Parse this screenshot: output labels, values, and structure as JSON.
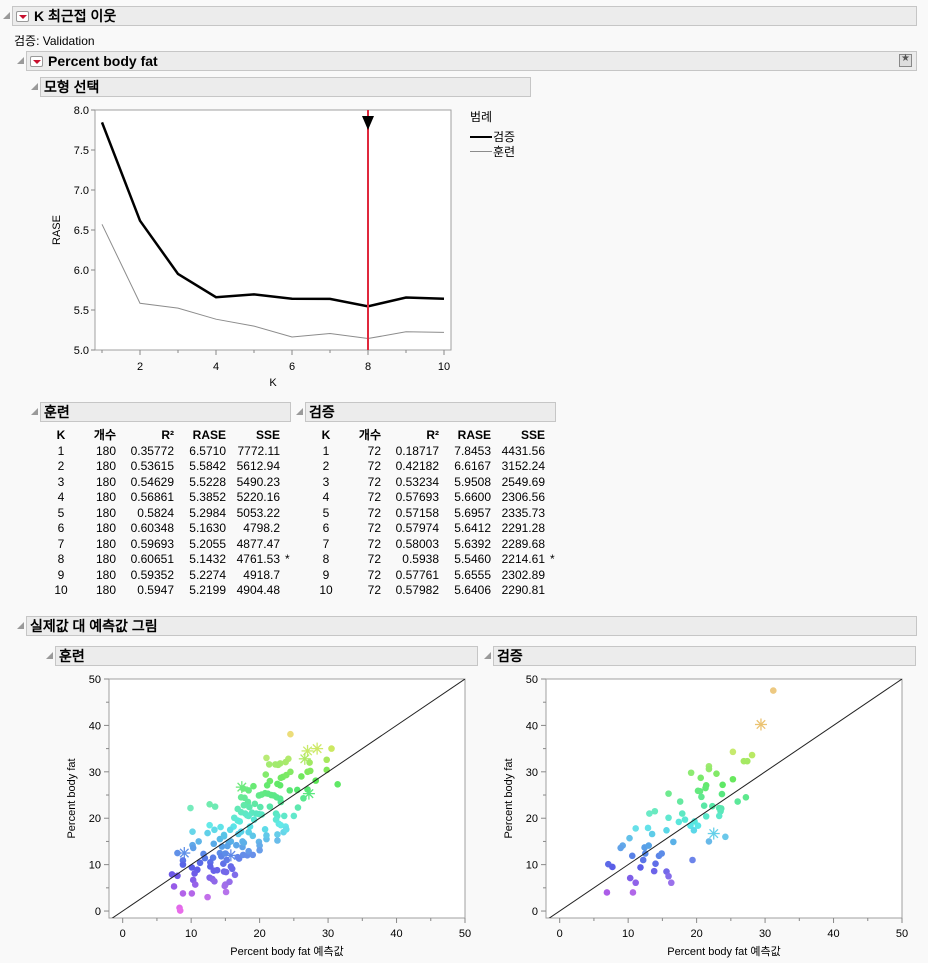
{
  "report": {
    "title": "K 최근접 이웃",
    "validation_label": "검증: Validation",
    "response": {
      "title": "Percent body fat",
      "model_selection": {
        "title": "모형 선택",
        "legend_title": "범례",
        "legend_items": [
          "검증",
          "훈련"
        ]
      },
      "training_table": {
        "title": "훈련",
        "columns": [
          "K",
          "개수",
          "R²",
          "RASE",
          "SSE",
          ""
        ],
        "rows": [
          [
            "1",
            "180",
            "0.35772",
            "6.5710",
            "7772.11",
            ""
          ],
          [
            "2",
            "180",
            "0.53615",
            "5.5842",
            "5612.94",
            ""
          ],
          [
            "3",
            "180",
            "0.54629",
            "5.5228",
            "5490.23",
            ""
          ],
          [
            "4",
            "180",
            "0.56861",
            "5.3852",
            "5220.16",
            ""
          ],
          [
            "5",
            "180",
            "0.5824",
            "5.2984",
            "5053.22",
            ""
          ],
          [
            "6",
            "180",
            "0.60348",
            "5.1630",
            "4798.2",
            ""
          ],
          [
            "7",
            "180",
            "0.59693",
            "5.2055",
            "4877.47",
            ""
          ],
          [
            "8",
            "180",
            "0.60651",
            "5.1432",
            "4761.53",
            "*"
          ],
          [
            "9",
            "180",
            "0.59352",
            "5.2274",
            "4918.7",
            ""
          ],
          [
            "10",
            "180",
            "0.5947",
            "5.2199",
            "4904.48",
            ""
          ]
        ]
      },
      "validation_table": {
        "title": "검증",
        "columns": [
          "K",
          "개수",
          "R²",
          "RASE",
          "SSE",
          ""
        ],
        "rows": [
          [
            "1",
            "72",
            "0.18717",
            "7.8453",
            "4431.56",
            ""
          ],
          [
            "2",
            "72",
            "0.42182",
            "6.6167",
            "3152.24",
            ""
          ],
          [
            "3",
            "72",
            "0.53234",
            "5.9508",
            "2549.69",
            ""
          ],
          [
            "4",
            "72",
            "0.57693",
            "5.6600",
            "2306.56",
            ""
          ],
          [
            "5",
            "72",
            "0.57158",
            "5.6957",
            "2335.73",
            ""
          ],
          [
            "6",
            "72",
            "0.57974",
            "5.6412",
            "2291.28",
            ""
          ],
          [
            "7",
            "72",
            "0.58003",
            "5.6392",
            "2289.68",
            ""
          ],
          [
            "8",
            "72",
            "0.5938",
            "5.5460",
            "2214.61",
            "*"
          ],
          [
            "9",
            "72",
            "0.57761",
            "5.6555",
            "2302.89",
            ""
          ],
          [
            "10",
            "72",
            "0.57982",
            "5.6406",
            "2290.81",
            ""
          ]
        ]
      },
      "actual_vs_predicted": {
        "title": "실제값 대 예측값 그림",
        "training_title": "훈련",
        "validation_title": "검증"
      }
    }
  },
  "colors": {
    "validation_line": "#000000",
    "training_line": "#8c8c8c",
    "selected_k_line": "#e0283c",
    "band_bg": "#ececec"
  },
  "chart_data": [
    {
      "type": "line",
      "title": "모형 선택",
      "xlabel": "K",
      "ylabel": "RASE",
      "x": [
        1,
        2,
        3,
        4,
        5,
        6,
        7,
        8,
        9,
        10
      ],
      "xticks": [
        2,
        4,
        6,
        8,
        10
      ],
      "yticks": [
        5.0,
        5.5,
        6.0,
        6.5,
        7.0,
        7.5,
        8.0
      ],
      "ylim": [
        5.0,
        8.0
      ],
      "xlim": [
        0.8,
        10.2
      ],
      "selected_k": 8,
      "legend": {
        "title": "범례",
        "position": "right"
      },
      "series": [
        {
          "name": "검증",
          "values": [
            7.8453,
            6.6167,
            5.9508,
            5.66,
            5.6957,
            5.6412,
            5.6392,
            5.546,
            5.6555,
            5.6406
          ]
        },
        {
          "name": "훈련",
          "values": [
            6.571,
            5.5842,
            5.5228,
            5.3852,
            5.2984,
            5.163,
            5.2055,
            5.1432,
            5.2274,
            5.2199
          ]
        }
      ]
    },
    {
      "type": "scatter",
      "title": "훈련",
      "xlabel": "Percent body fat 예측값",
      "ylabel": "Percent body fat",
      "xlim": [
        -2,
        50
      ],
      "ylim": [
        -1.5,
        50
      ],
      "xticks": [
        0,
        10,
        20,
        30,
        40,
        50
      ],
      "yticks": [
        0,
        10,
        20,
        30,
        40,
        50
      ],
      "reference_line": "y=x",
      "points": [
        [
          24.5,
          38.1
        ],
        [
          30.5,
          35
        ],
        [
          28.4,
          35,
          "s"
        ],
        [
          27,
          34.5,
          "s"
        ],
        [
          21,
          33
        ],
        [
          24.2,
          32.8
        ],
        [
          26.6,
          32.8,
          "s"
        ],
        [
          27.3,
          32
        ],
        [
          29.8,
          32.6
        ],
        [
          22.3,
          31.6
        ],
        [
          21.4,
          31.6
        ],
        [
          23,
          31.8
        ],
        [
          22.7,
          31.5
        ],
        [
          23.8,
          32.1
        ],
        [
          20.9,
          29.4
        ],
        [
          23.4,
          28.9
        ],
        [
          23.1,
          28.7
        ],
        [
          24.5,
          30
        ],
        [
          23.9,
          29.3
        ],
        [
          26.1,
          29
        ],
        [
          27,
          30
        ],
        [
          27.4,
          30.2
        ],
        [
          29.8,
          30.4
        ],
        [
          21.5,
          28
        ],
        [
          22.6,
          27.4
        ],
        [
          23,
          27.1
        ],
        [
          21.1,
          27.1
        ],
        [
          18.4,
          26
        ],
        [
          19.1,
          26.9
        ],
        [
          17.4,
          26.7,
          "s"
        ],
        [
          17.6,
          26.4
        ],
        [
          24.4,
          26
        ],
        [
          25.5,
          26.1
        ],
        [
          27,
          26.2
        ],
        [
          27.2,
          25.3,
          "s"
        ],
        [
          31.4,
          27.3
        ],
        [
          28.2,
          28.1
        ],
        [
          26.4,
          24.3
        ],
        [
          19.9,
          24.9
        ],
        [
          20.3,
          25.1
        ],
        [
          20.8,
          25.4
        ],
        [
          21.2,
          25.3
        ],
        [
          21.7,
          25
        ],
        [
          22.1,
          24.9
        ],
        [
          22.5,
          24.5
        ],
        [
          23,
          24.2
        ],
        [
          17.3,
          24.5
        ],
        [
          17.8,
          24.4
        ],
        [
          18.3,
          23.5
        ],
        [
          23.1,
          23.5
        ],
        [
          17.7,
          22.8
        ],
        [
          18.5,
          22.4
        ],
        [
          19.3,
          23.1
        ],
        [
          21.5,
          22.5
        ],
        [
          20.1,
          22.4
        ],
        [
          13.5,
          22.5
        ],
        [
          12.7,
          23
        ],
        [
          9.9,
          22.2
        ],
        [
          16.8,
          22
        ],
        [
          17.3,
          21.3
        ],
        [
          17.9,
          21
        ],
        [
          18.2,
          20.6
        ],
        [
          18.9,
          21.2
        ],
        [
          19.5,
          21
        ],
        [
          19.9,
          20.9
        ],
        [
          20.3,
          20.8
        ],
        [
          22.4,
          21
        ],
        [
          22.6,
          20.5
        ],
        [
          23.6,
          20.5
        ],
        [
          25,
          20.5
        ],
        [
          25.6,
          22.3
        ],
        [
          16.3,
          20.1
        ],
        [
          16.8,
          19.5
        ],
        [
          17.1,
          19.3
        ],
        [
          18.4,
          20.5
        ],
        [
          19.2,
          19.7
        ],
        [
          22.4,
          19.7
        ],
        [
          22.8,
          18.8
        ],
        [
          23.1,
          18.5
        ],
        [
          23.8,
          18.2
        ],
        [
          12.7,
          18.5
        ],
        [
          14.3,
          18.1
        ],
        [
          16.2,
          18.2
        ],
        [
          18.6,
          18.2
        ],
        [
          10.2,
          17.1
        ],
        [
          12.4,
          16.8
        ],
        [
          13.4,
          17.5
        ],
        [
          14.8,
          16.4
        ],
        [
          15.7,
          17.5
        ],
        [
          16.9,
          16.6
        ],
        [
          17.3,
          17.1
        ],
        [
          18.4,
          17
        ],
        [
          20.8,
          17.6
        ],
        [
          22.6,
          16.5
        ],
        [
          23.5,
          17
        ],
        [
          23.9,
          17.6
        ],
        [
          14.2,
          15.5
        ],
        [
          14.8,
          16.1
        ],
        [
          15.8,
          15
        ],
        [
          17.5,
          15
        ],
        [
          19,
          16.2
        ],
        [
          21,
          15.5
        ],
        [
          21,
          16.3
        ],
        [
          22.6,
          15.2
        ],
        [
          11.1,
          15
        ],
        [
          15.5,
          14.8
        ],
        [
          10.2,
          14.2
        ],
        [
          10.3,
          13.6
        ],
        [
          13.3,
          14.5
        ],
        [
          14.5,
          13.9
        ],
        [
          15.3,
          14
        ],
        [
          16.6,
          14.2
        ],
        [
          17.5,
          13.8
        ],
        [
          17.7,
          14.7
        ],
        [
          19.9,
          14.9
        ],
        [
          20,
          14.1
        ],
        [
          20,
          13.1
        ],
        [
          8,
          12.5
        ],
        [
          9,
          12.5,
          "s"
        ],
        [
          11.8,
          12.3
        ],
        [
          12,
          11.4
        ],
        [
          13.2,
          11.5
        ],
        [
          14.2,
          12.5
        ],
        [
          14.4,
          11.8
        ],
        [
          15,
          12.4
        ],
        [
          15.8,
          12,
          "s"
        ],
        [
          16.8,
          11.6
        ],
        [
          17,
          11.3
        ],
        [
          17.6,
          12.1
        ],
        [
          18.2,
          12
        ],
        [
          18.4,
          12.9
        ],
        [
          19,
          12.1
        ],
        [
          8.8,
          10.9
        ],
        [
          12.8,
          10.5
        ],
        [
          14.7,
          10.2
        ],
        [
          15.2,
          11
        ],
        [
          8.8,
          10
        ],
        [
          10.1,
          9.4
        ],
        [
          10.9,
          8.9
        ],
        [
          11.3,
          10.4
        ],
        [
          12.8,
          9.6
        ],
        [
          13.3,
          8.7
        ],
        [
          13.8,
          8.8
        ],
        [
          14.8,
          8.5
        ],
        [
          15.1,
          8.4
        ],
        [
          15.8,
          9.6
        ],
        [
          16,
          9.1
        ],
        [
          16.4,
          7.8
        ],
        [
          7.2,
          7.9
        ],
        [
          8,
          7.6
        ],
        [
          10.5,
          8.1
        ],
        [
          12.7,
          7.2
        ],
        [
          13.1,
          6.9
        ],
        [
          13.4,
          6.4
        ],
        [
          15,
          5.7
        ],
        [
          15.6,
          6.3
        ],
        [
          7.5,
          5.3
        ],
        [
          10.3,
          6.7
        ],
        [
          10.6,
          5.7
        ],
        [
          14.9,
          5.4
        ],
        [
          8.8,
          3.8
        ],
        [
          10.1,
          3.8
        ],
        [
          12.4,
          3
        ],
        [
          15.1,
          4.1
        ],
        [
          8.3,
          0.7
        ],
        [
          8.4,
          0.1
        ]
      ]
    },
    {
      "type": "scatter",
      "title": "검증",
      "xlabel": "Percent body fat 예측값",
      "ylabel": "Percent body fat",
      "xlim": [
        -2,
        50
      ],
      "ylim": [
        -1.5,
        50
      ],
      "xticks": [
        0,
        10,
        20,
        30,
        40,
        50
      ],
      "yticks": [
        0,
        10,
        20,
        30,
        40,
        50
      ],
      "reference_line": "y=x",
      "points": [
        [
          31.2,
          47.5
        ],
        [
          29.4,
          40.2,
          "s"
        ],
        [
          25.3,
          34.3
        ],
        [
          28.1,
          33.6
        ],
        [
          26.9,
          32.3
        ],
        [
          27.4,
          32.3
        ],
        [
          21.8,
          31.2
        ],
        [
          21.8,
          30.6
        ],
        [
          19.2,
          29.8
        ],
        [
          22.9,
          29.6
        ],
        [
          20.6,
          28.7
        ],
        [
          25.3,
          28.4
        ],
        [
          23.8,
          27.2
        ],
        [
          21.4,
          27.1
        ],
        [
          21.3,
          26.5
        ],
        [
          20.2,
          25.9
        ],
        [
          20.5,
          25.8
        ],
        [
          23.7,
          25.2
        ],
        [
          15.9,
          25.3
        ],
        [
          20.7,
          24.6
        ],
        [
          27.2,
          24.5
        ],
        [
          17.6,
          23.6
        ],
        [
          26,
          23.6
        ],
        [
          21.1,
          22.7
        ],
        [
          22.3,
          22.6
        ],
        [
          23.3,
          22.2
        ],
        [
          23.6,
          22.1
        ],
        [
          23.5,
          21.5
        ],
        [
          13.9,
          21.5
        ],
        [
          13.1,
          21
        ],
        [
          17.9,
          21
        ],
        [
          21.4,
          20.4
        ],
        [
          23.3,
          20.5
        ],
        [
          15.9,
          20.1
        ],
        [
          18.3,
          19.7
        ],
        [
          17.4,
          19.2
        ],
        [
          19.7,
          19.3
        ],
        [
          19.1,
          18.4
        ],
        [
          20.2,
          18.4
        ],
        [
          11.1,
          17.8
        ],
        [
          12.9,
          17.9
        ],
        [
          15.6,
          17.4
        ],
        [
          19.6,
          17.4
        ],
        [
          13.5,
          16.6
        ],
        [
          22.5,
          16.7,
          "s"
        ],
        [
          24.2,
          16
        ],
        [
          10.2,
          15.7
        ],
        [
          16.6,
          14.9
        ],
        [
          21.8,
          15
        ],
        [
          9.2,
          14.1
        ],
        [
          8.9,
          13.6
        ],
        [
          12.4,
          13.7
        ],
        [
          13.0,
          14.1
        ],
        [
          12.5,
          12.4
        ],
        [
          10.6,
          11.9
        ],
        [
          14.5,
          11.9
        ],
        [
          14.9,
          12.4
        ],
        [
          19.4,
          11
        ],
        [
          12.2,
          11
        ],
        [
          7.1,
          10.1
        ],
        [
          7.7,
          9.5
        ],
        [
          14,
          10.2
        ],
        [
          11.8,
          9.4
        ],
        [
          13.8,
          8.6
        ],
        [
          15.6,
          8.5
        ],
        [
          15.9,
          7.5
        ],
        [
          10.3,
          7.1
        ],
        [
          11.1,
          6.1
        ],
        [
          16.3,
          6.1
        ],
        [
          6.9,
          4
        ],
        [
          10.7,
          4
        ]
      ]
    }
  ]
}
